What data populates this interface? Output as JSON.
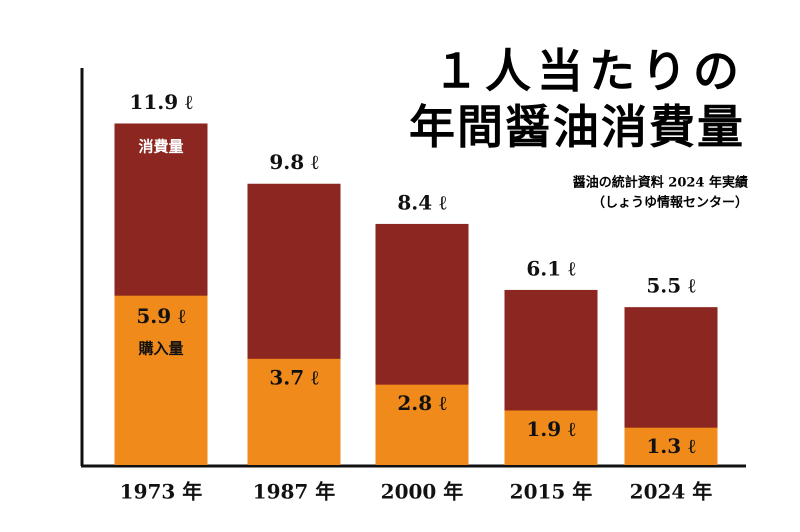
{
  "chart_data": {
    "type": "bar",
    "title": [
      "１人当たりの",
      "年間醤油消費量"
    ],
    "subtitle": [
      "醤油の統計資料 2024 年実績",
      "（しょうゆ情報センター）"
    ],
    "categories": [
      "1973 年",
      "1987 年",
      "2000 年",
      "2015 年",
      "2024 年"
    ],
    "series": [
      {
        "name": "消費量",
        "color": "#8b2620",
        "values": [
          11.9,
          9.8,
          8.4,
          6.1,
          5.5
        ],
        "value_labels": [
          "11.9 ℓ",
          "9.8 ℓ",
          "8.4 ℓ",
          "6.1 ℓ",
          "5.5 ℓ"
        ]
      },
      {
        "name": "購入量",
        "color": "#f08a1a",
        "values": [
          5.9,
          3.7,
          2.8,
          1.9,
          1.3
        ],
        "value_labels": [
          "5.9 ℓ",
          "3.7 ℓ",
          "2.8 ℓ",
          "1.9 ℓ",
          "1.3 ℓ"
        ]
      }
    ]
  }
}
